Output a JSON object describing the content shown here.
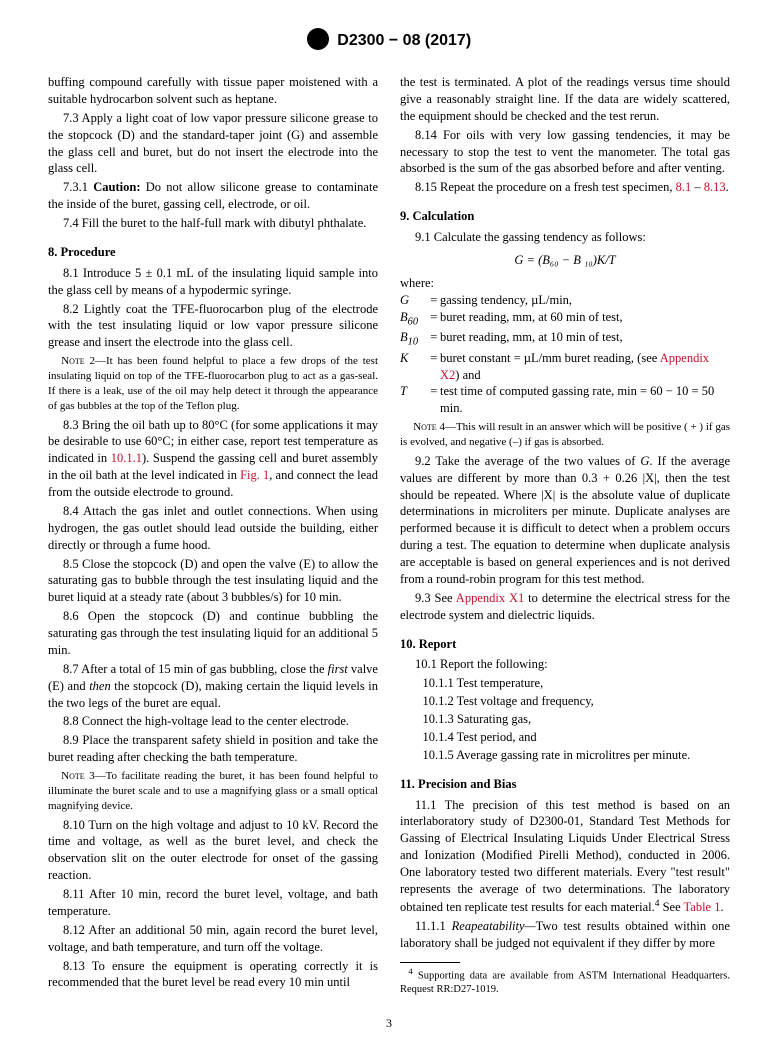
{
  "header": {
    "standard_no": "D2300 − 08 (2017)",
    "logo_text": "ASTM"
  },
  "p_a1": "buffing compound carefully with tissue paper moistened with a suitable hydrocarbon solvent such as heptane.",
  "p_73": "7.3 Apply a light coat of low vapor pressure silicone grease to the stopcock (D) and the standard-taper joint (G) and assemble the glass cell and buret, but do not insert the electrode into the glass cell.",
  "p_731a": "7.3.1 ",
  "p_731b": "Caution:",
  "p_731c": " Do not allow silicone grease to contaminate the inside of the buret, gassing cell, electrode, or oil.",
  "p_74": "7.4 Fill the buret to the half-full mark with dibutyl phthalate.",
  "sec8": "8.  Procedure",
  "p_81": "8.1 Introduce 5 ± 0.1 mL of the insulating liquid sample into the glass cell by means of a hypodermic syringe.",
  "p_82": "8.2 Lightly coat the TFE-fluorocarbon plug of the electrode with the test insulating liquid or low vapor pressure silicone grease and insert the electrode into the glass cell.",
  "note2a": "Note",
  "note2b": " 2—It has been found helpful to place a few drops of the test insulating liquid on top of the TFE-fluorocarbon plug to act as a gas-seal. If there is a leak, use of the oil may help detect it through the appearance of gas bubbles at the top of the Teflon plug.",
  "p_83a": "8.3 Bring the oil bath up to 80°C (for some applications it may be desirable to use 60°C; in either case, report test temperature as indicated in ",
  "p_83x1": "10.1.1",
  "p_83b": "). Suspend the gassing cell and buret assembly in the oil bath at the level indicated in ",
  "p_83x2": "Fig. 1",
  "p_83c": ", and connect the lead from the outside electrode to ground.",
  "p_84": "8.4 Attach the gas inlet and outlet connections. When using hydrogen, the gas outlet should lead outside the building, either directly or through a fume hood.",
  "p_85": "8.5 Close the stopcock (D) and open the valve (E) to allow the saturating gas to bubble through the test insulating liquid and the buret liquid at a steady rate (about 3 bubbles/s) for 10 min.",
  "p_86": "8.6 Open the stopcock (D) and continue bubbling the saturating gas through the test insulating liquid for an additional 5 min.",
  "p_87a": "8.7 After a total of 15 min of gas bubbling, close the ",
  "p_87i1": "first",
  "p_87b": " valve (E) and ",
  "p_87i2": "then",
  "p_87c": " the stopcock (D), making certain the liquid levels in the two legs of the buret are equal.",
  "p_88": "8.8 Connect the high-voltage lead to the center electrode.",
  "p_89": "8.9 Place the transparent safety shield in position and take the buret reading after checking the bath temperature.",
  "note3a": "Note",
  "note3b": " 3—To facilitate reading the buret, it has been found helpful to illuminate the buret scale and to use a magnifying glass or a small optical magnifying device.",
  "p_810": "8.10 Turn on the high voltage and adjust to 10 kV. Record the time and voltage, as well as the buret level, and check the observation slit on the outer electrode for onset of the gassing reaction.",
  "p_811": "8.11 After 10 min, record the buret level, voltage, and bath temperature.",
  "p_812": "8.12 After an additional 50 min, again record the buret level, voltage, and bath temperature, and turn off the voltage.",
  "p_813": "8.13 To ensure the equipment is operating correctly it is recommended that the buret level be read every 10 min until",
  "p_813b": "the test is terminated. A plot of the readings versus time should give a reasonably straight line. If the data are widely scattered, the equipment should be checked and the test rerun.",
  "p_814": "8.14 For oils with very low gassing tendencies, it may be necessary to stop the test to vent the manometer. The total gas absorbed is the sum of the gas absorbed before and after venting.",
  "p_815a": "8.15 Repeat the procedure on a fresh test specimen, ",
  "p_815x1": "8.1",
  "p_815b": " – ",
  "p_815x2": "8.13",
  "p_815c": ".",
  "sec9": "9.  Calculation",
  "p_91": "9.1 Calculate the gassing tendency as follows:",
  "formula": "G = (B₆₀ − B ₁₀)K/T",
  "where": "where:",
  "defs": {
    "G": "gassing tendency, µL/min,",
    "B60": "buret reading, mm, at 60 min of test,",
    "B10": "buret reading, mm, at 10 min of test,",
    "K_a": "buret constant = µL/mm buret reading, (see ",
    "K_x": "Appendix X2",
    "K_b": ") and",
    "T": "test time of computed gassing rate, min = 60 − 10 = 50 min."
  },
  "note4a": "Note",
  "note4b": " 4—This will result in an answer which will be positive ( + ) if gas is evolved, and negative (–) if gas is absorbed.",
  "p_92a": "9.2 Take the average of the two values of ",
  "p_92iG": "G",
  "p_92b": ". If the average values are different by more than 0.3 + 0.26 |X|, then the test should be repeated. Where |X| is the absolute value of duplicate determinations in microliters per minute. Duplicate analyses are performed because it is difficult to detect when a problem occurs during a test. The equation to determine when duplicate analysis are acceptable is based on general experiences and is not derived from a round-robin program for this test method.",
  "p_93a": "9.3 See ",
  "p_93x": "Appendix X1",
  "p_93b": " to determine the electrical stress for the electrode system and dielectric liquids.",
  "sec10": "10.  Report",
  "p_101": "10.1 Report the following:",
  "p_1011": "10.1.1 Test temperature,",
  "p_1012": "10.1.2 Test voltage and frequency,",
  "p_1013": "10.1.3 Saturating gas,",
  "p_1014": "10.1.4 Test period, and",
  "p_1015": "10.1.5 Average gassing rate in microlitres per minute.",
  "sec11": "11.  Precision and Bias",
  "p_111a": "11.1 The precision of this test method is based on an interlaboratory study of D2300-01, Standard Test Methods for Gassing of Electrical Insulating Liquids Under Electrical Stress and Ionization (Modified Pirelli Method), conducted in 2006. One laboratory tested two different materials. Every \"test result\" represents the average of two determinations. The laboratory obtained ten replicate test results for each material.",
  "p_111fn": "4",
  "p_111b": " See ",
  "p_111x": "Table 1",
  "p_111c": ".",
  "p_1111a": "11.1.1 ",
  "p_1111i": "Reapeatability—",
  "p_1111b": "Two test results obtained within one laboratory shall be judged not equivalent if they differ by more",
  "footnote_num": "4",
  "footnote": " Supporting data are available from ASTM International Headquarters. Request RR:D27-1019.",
  "pagenum": "3"
}
